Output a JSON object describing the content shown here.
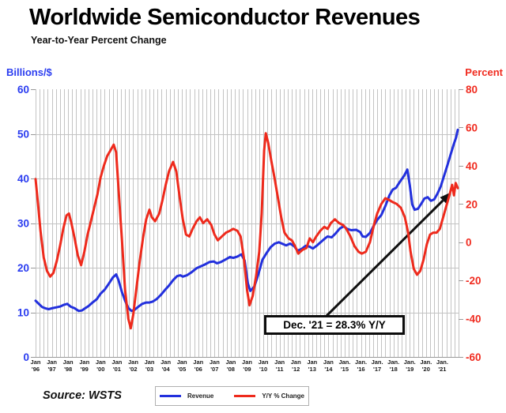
{
  "header": {
    "title": "Worldwide Semiconductor Revenues",
    "subtitle": "Year-to-Year Percent Change"
  },
  "source": "Source: WSTS",
  "legend": {
    "items": [
      {
        "label": "Revenue",
        "color": "#2230dd"
      },
      {
        "label": "Y/Y % Change",
        "color": "#ee2a1c"
      }
    ]
  },
  "chart_data": {
    "type": "line",
    "title": "Worldwide Semiconductor Revenues",
    "subtitle": "Year-to-Year Percent Change",
    "grid": "on",
    "left_axis": {
      "label": "Billions/$",
      "color": "#2a3cf0",
      "range": [
        0,
        60
      ],
      "ticks": [
        60,
        50,
        40,
        30,
        20,
        10,
        0
      ]
    },
    "right_axis": {
      "label": "Percent",
      "color": "#f02b1f",
      "range": [
        -60,
        80
      ],
      "ticks": [
        80,
        60,
        40,
        20,
        0,
        -20,
        -40,
        -60
      ]
    },
    "x_axis": {
      "start_year": 1996,
      "end_year": 2022,
      "gridline_interval_years": 0.25,
      "tick_labels": [
        [
          "Jan",
          "'96"
        ],
        [
          "Jan",
          "'97"
        ],
        [
          "Jan",
          "'98"
        ],
        [
          "Jan",
          "'99"
        ],
        [
          "Jan",
          "'00"
        ],
        [
          "Jan",
          "'01"
        ],
        [
          "Jan",
          "'02"
        ],
        [
          "Jan",
          "'03"
        ],
        [
          "Jan",
          "'04"
        ],
        [
          "Jan",
          "'05"
        ],
        [
          "Jan",
          "'06"
        ],
        [
          "Jan",
          "'07"
        ],
        [
          "Jan",
          "'08"
        ],
        [
          "Jan",
          "'09"
        ],
        [
          "Jan",
          "'10"
        ],
        [
          "Jan",
          "'11"
        ],
        [
          "Jan",
          "'12"
        ],
        [
          "Jan",
          "'13"
        ],
        [
          "Jan",
          "'14"
        ],
        [
          "Jan.",
          "'15"
        ],
        [
          "Jan.",
          "'16"
        ],
        [
          "Jan.",
          "'17"
        ],
        [
          "Jan.",
          "'18"
        ],
        [
          "Jan.",
          "'19"
        ],
        [
          "Jan.",
          "'20"
        ],
        [
          "Jan.",
          "'21"
        ]
      ]
    },
    "annotation": {
      "text": "Dec. '21 = 28.3% Y/Y",
      "points_to": "Dec 2021 on Y/Y % Change line",
      "value": 28.3
    },
    "series": [
      {
        "name": "Revenue",
        "axis": "left",
        "units": "billions of dollars",
        "color": "#2230dd",
        "points": [
          [
            1996.0,
            12.6
          ],
          [
            1996.2,
            11.9
          ],
          [
            1996.4,
            11.2
          ],
          [
            1996.6,
            10.9
          ],
          [
            1996.8,
            10.7
          ],
          [
            1997.0,
            10.9
          ],
          [
            1997.25,
            11.1
          ],
          [
            1997.5,
            11.3
          ],
          [
            1997.75,
            11.7
          ],
          [
            1997.95,
            11.9
          ],
          [
            1998.15,
            11.3
          ],
          [
            1998.4,
            10.9
          ],
          [
            1998.65,
            10.3
          ],
          [
            1998.85,
            10.4
          ],
          [
            1999.0,
            10.8
          ],
          [
            1999.25,
            11.4
          ],
          [
            1999.5,
            12.2
          ],
          [
            1999.75,
            12.9
          ],
          [
            2000.0,
            14.2
          ],
          [
            2000.25,
            15.1
          ],
          [
            2000.5,
            16.4
          ],
          [
            2000.75,
            17.8
          ],
          [
            2000.95,
            18.5
          ],
          [
            2001.1,
            17.2
          ],
          [
            2001.3,
            14.6
          ],
          [
            2001.5,
            12.6
          ],
          [
            2001.7,
            11.0
          ],
          [
            2001.9,
            10.3
          ],
          [
            2002.1,
            10.6
          ],
          [
            2002.3,
            11.2
          ],
          [
            2002.55,
            11.9
          ],
          [
            2002.8,
            12.2
          ],
          [
            2003.0,
            12.2
          ],
          [
            2003.2,
            12.4
          ],
          [
            2003.45,
            13.0
          ],
          [
            2003.7,
            13.9
          ],
          [
            2003.95,
            15.0
          ],
          [
            2004.2,
            16.0
          ],
          [
            2004.45,
            17.2
          ],
          [
            2004.7,
            18.1
          ],
          [
            2004.9,
            18.3
          ],
          [
            2005.05,
            18.0
          ],
          [
            2005.3,
            18.3
          ],
          [
            2005.6,
            19.0
          ],
          [
            2005.9,
            19.9
          ],
          [
            2006.15,
            20.3
          ],
          [
            2006.4,
            20.7
          ],
          [
            2006.7,
            21.3
          ],
          [
            2006.95,
            21.4
          ],
          [
            2007.15,
            21.0
          ],
          [
            2007.4,
            21.3
          ],
          [
            2007.7,
            21.9
          ],
          [
            2007.95,
            22.4
          ],
          [
            2008.15,
            22.2
          ],
          [
            2008.4,
            22.5
          ],
          [
            2008.65,
            23.0
          ],
          [
            2008.85,
            21.6
          ],
          [
            2009.05,
            16.5
          ],
          [
            2009.2,
            14.8
          ],
          [
            2009.45,
            15.8
          ],
          [
            2009.7,
            18.6
          ],
          [
            2009.95,
            21.8
          ],
          [
            2010.2,
            23.3
          ],
          [
            2010.45,
            24.6
          ],
          [
            2010.7,
            25.4
          ],
          [
            2010.95,
            25.7
          ],
          [
            2011.15,
            25.4
          ],
          [
            2011.4,
            25.0
          ],
          [
            2011.65,
            25.4
          ],
          [
            2011.9,
            24.8
          ],
          [
            2012.1,
            23.8
          ],
          [
            2012.35,
            24.2
          ],
          [
            2012.6,
            24.9
          ],
          [
            2012.85,
            24.7
          ],
          [
            2013.05,
            24.3
          ],
          [
            2013.3,
            25.0
          ],
          [
            2013.55,
            25.8
          ],
          [
            2013.8,
            26.6
          ],
          [
            2013.95,
            27.0
          ],
          [
            2014.2,
            26.8
          ],
          [
            2014.45,
            27.7
          ],
          [
            2014.7,
            28.8
          ],
          [
            2014.95,
            29.3
          ],
          [
            2015.15,
            28.7
          ],
          [
            2015.4,
            28.4
          ],
          [
            2015.7,
            28.5
          ],
          [
            2015.95,
            28.0
          ],
          [
            2016.1,
            27.0
          ],
          [
            2016.3,
            26.9
          ],
          [
            2016.55,
            27.8
          ],
          [
            2016.8,
            29.5
          ],
          [
            2017.0,
            30.7
          ],
          [
            2017.25,
            31.8
          ],
          [
            2017.5,
            33.8
          ],
          [
            2017.75,
            36.2
          ],
          [
            2017.95,
            37.5
          ],
          [
            2018.15,
            37.9
          ],
          [
            2018.4,
            39.3
          ],
          [
            2018.65,
            40.6
          ],
          [
            2018.85,
            42.0
          ],
          [
            2019.0,
            38.5
          ],
          [
            2019.15,
            34.2
          ],
          [
            2019.3,
            33.0
          ],
          [
            2019.5,
            33.2
          ],
          [
            2019.7,
            34.3
          ],
          [
            2019.9,
            35.5
          ],
          [
            2020.1,
            35.8
          ],
          [
            2020.3,
            35.0
          ],
          [
            2020.5,
            35.3
          ],
          [
            2020.7,
            36.6
          ],
          [
            2020.9,
            38.2
          ],
          [
            2021.1,
            40.5
          ],
          [
            2021.3,
            42.8
          ],
          [
            2021.5,
            45.2
          ],
          [
            2021.7,
            47.6
          ],
          [
            2021.85,
            49.2
          ],
          [
            2021.95,
            50.9
          ]
        ]
      },
      {
        "name": "Y/Y % Change",
        "axis": "right",
        "units": "percent",
        "color": "#ee2a1c",
        "points": [
          [
            1996.0,
            33
          ],
          [
            1996.15,
            20
          ],
          [
            1996.3,
            6
          ],
          [
            1996.5,
            -8
          ],
          [
            1996.7,
            -15
          ],
          [
            1996.9,
            -18
          ],
          [
            1997.1,
            -16
          ],
          [
            1997.3,
            -10
          ],
          [
            1997.5,
            -2
          ],
          [
            1997.7,
            7
          ],
          [
            1997.9,
            14
          ],
          [
            1998.05,
            15
          ],
          [
            1998.2,
            10
          ],
          [
            1998.4,
            2
          ],
          [
            1998.6,
            -7
          ],
          [
            1998.8,
            -12
          ],
          [
            1999.0,
            -5
          ],
          [
            1999.2,
            4
          ],
          [
            1999.4,
            11
          ],
          [
            1999.6,
            18
          ],
          [
            1999.8,
            25
          ],
          [
            2000.0,
            34
          ],
          [
            2000.2,
            40
          ],
          [
            2000.4,
            45
          ],
          [
            2000.6,
            48
          ],
          [
            2000.8,
            51
          ],
          [
            2000.95,
            47
          ],
          [
            2001.1,
            28
          ],
          [
            2001.3,
            2
          ],
          [
            2001.5,
            -25
          ],
          [
            2001.7,
            -40
          ],
          [
            2001.85,
            -45
          ],
          [
            2002.0,
            -38
          ],
          [
            2002.2,
            -24
          ],
          [
            2002.4,
            -10
          ],
          [
            2002.6,
            2
          ],
          [
            2002.8,
            12
          ],
          [
            2003.0,
            17
          ],
          [
            2003.15,
            13
          ],
          [
            2003.35,
            11
          ],
          [
            2003.6,
            15
          ],
          [
            2003.8,
            22
          ],
          [
            2004.0,
            30
          ],
          [
            2004.2,
            37
          ],
          [
            2004.45,
            42
          ],
          [
            2004.65,
            37
          ],
          [
            2004.85,
            24
          ],
          [
            2005.05,
            12
          ],
          [
            2005.25,
            4
          ],
          [
            2005.45,
            3
          ],
          [
            2005.65,
            7
          ],
          [
            2005.9,
            11
          ],
          [
            2006.1,
            13
          ],
          [
            2006.3,
            10
          ],
          [
            2006.55,
            12
          ],
          [
            2006.8,
            9
          ],
          [
            2007.0,
            4
          ],
          [
            2007.2,
            1
          ],
          [
            2007.45,
            3
          ],
          [
            2007.7,
            5
          ],
          [
            2007.95,
            6
          ],
          [
            2008.15,
            7
          ],
          [
            2008.4,
            6
          ],
          [
            2008.6,
            3
          ],
          [
            2008.8,
            -8
          ],
          [
            2009.0,
            -25
          ],
          [
            2009.15,
            -33
          ],
          [
            2009.35,
            -28
          ],
          [
            2009.55,
            -18
          ],
          [
            2009.75,
            -5
          ],
          [
            2009.9,
            15
          ],
          [
            2010.05,
            48
          ],
          [
            2010.15,
            57
          ],
          [
            2010.3,
            52
          ],
          [
            2010.5,
            42
          ],
          [
            2010.7,
            33
          ],
          [
            2010.9,
            23
          ],
          [
            2011.1,
            13
          ],
          [
            2011.3,
            5
          ],
          [
            2011.55,
            2
          ],
          [
            2011.75,
            1
          ],
          [
            2011.95,
            -2
          ],
          [
            2012.15,
            -6
          ],
          [
            2012.4,
            -4
          ],
          [
            2012.65,
            -3
          ],
          [
            2012.85,
            2
          ],
          [
            2013.05,
            0
          ],
          [
            2013.25,
            3
          ],
          [
            2013.5,
            6
          ],
          [
            2013.75,
            8
          ],
          [
            2013.95,
            7
          ],
          [
            2014.15,
            10
          ],
          [
            2014.4,
            12
          ],
          [
            2014.65,
            10
          ],
          [
            2014.9,
            9
          ],
          [
            2015.1,
            7
          ],
          [
            2015.35,
            3
          ],
          [
            2015.6,
            -2
          ],
          [
            2015.85,
            -5
          ],
          [
            2016.05,
            -6
          ],
          [
            2016.3,
            -5
          ],
          [
            2016.55,
            0
          ],
          [
            2016.8,
            9
          ],
          [
            2017.0,
            15
          ],
          [
            2017.25,
            20
          ],
          [
            2017.5,
            23
          ],
          [
            2017.75,
            22
          ],
          [
            2017.95,
            21
          ],
          [
            2018.2,
            20
          ],
          [
            2018.45,
            18
          ],
          [
            2018.7,
            13
          ],
          [
            2018.9,
            5
          ],
          [
            2019.05,
            -5
          ],
          [
            2019.25,
            -14
          ],
          [
            2019.45,
            -17
          ],
          [
            2019.65,
            -15
          ],
          [
            2019.85,
            -9
          ],
          [
            2020.05,
            -1
          ],
          [
            2020.25,
            4
          ],
          [
            2020.45,
            5
          ],
          [
            2020.65,
            5
          ],
          [
            2020.85,
            7
          ],
          [
            2021.05,
            13
          ],
          [
            2021.25,
            19
          ],
          [
            2021.45,
            25
          ],
          [
            2021.6,
            30
          ],
          [
            2021.72,
            24.5
          ],
          [
            2021.82,
            31
          ],
          [
            2021.95,
            28.3
          ]
        ]
      }
    ]
  }
}
